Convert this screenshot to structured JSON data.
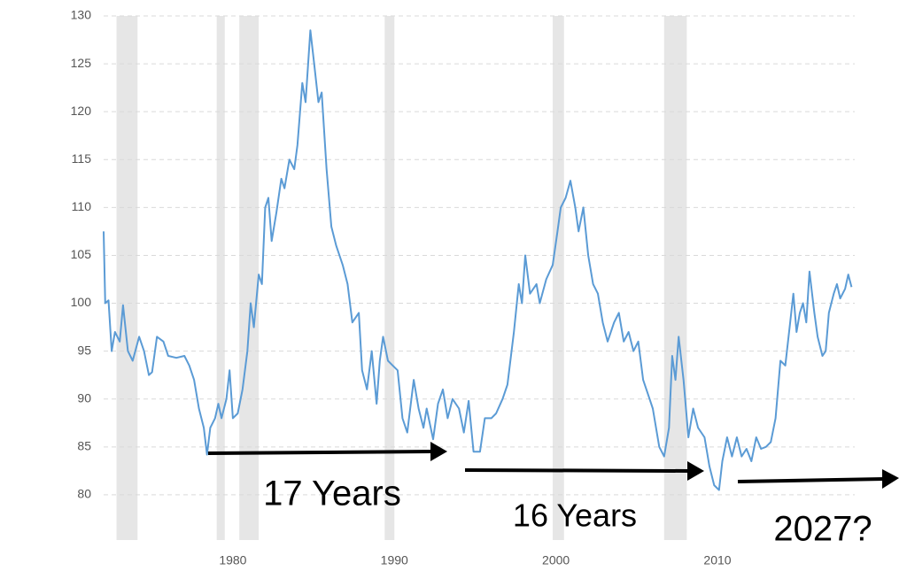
{
  "chart_data": {
    "type": "line",
    "x": [
      1972.0,
      1972.1,
      1972.3,
      1972.5,
      1972.7,
      1973.0,
      1973.2,
      1973.5,
      1973.8,
      1974.2,
      1974.5,
      1974.8,
      1975.0,
      1975.3,
      1975.7,
      1976.0,
      1976.5,
      1977.0,
      1977.3,
      1977.6,
      1977.9,
      1978.2,
      1978.4,
      1978.6,
      1978.9,
      1979.1,
      1979.3,
      1979.6,
      1979.8,
      1980.0,
      1980.3,
      1980.6,
      1980.9,
      1981.1,
      1981.3,
      1981.6,
      1981.8,
      1982.0,
      1982.2,
      1982.4,
      1982.7,
      1983.0,
      1983.2,
      1983.5,
      1983.8,
      1984.0,
      1984.3,
      1984.5,
      1984.8,
      1985.0,
      1985.3,
      1985.5,
      1985.8,
      1986.1,
      1986.4,
      1986.8,
      1987.1,
      1987.4,
      1987.8,
      1988.0,
      1988.3,
      1988.6,
      1988.9,
      1989.1,
      1989.3,
      1989.6,
      1989.9,
      1990.2,
      1990.5,
      1990.8,
      1991.2,
      1991.5,
      1991.8,
      1992.0,
      1992.4,
      1992.7,
      1993.0,
      1993.3,
      1993.6,
      1994.0,
      1994.3,
      1994.6,
      1994.9,
      1995.3,
      1995.6,
      1996.0,
      1996.3,
      1996.7,
      1997.0,
      1997.4,
      1997.7,
      1997.9,
      1998.1,
      1998.4,
      1998.8,
      1999.0,
      1999.4,
      1999.8,
      2000.1,
      2000.3,
      2000.6,
      2000.9,
      2001.2,
      2001.4,
      2001.7,
      2002.0,
      2002.3,
      2002.6,
      2002.9,
      2003.2,
      2003.6,
      2003.9,
      2004.2,
      2004.5,
      2004.8,
      2005.1,
      2005.4,
      2005.8,
      2006.0,
      2006.4,
      2006.7,
      2007.0,
      2007.2,
      2007.4,
      2007.6,
      2007.9,
      2008.2,
      2008.5,
      2008.8,
      2009.2,
      2009.5,
      2009.8,
      2010.1,
      2010.3,
      2010.6,
      2010.9,
      2011.2,
      2011.5,
      2011.8,
      2012.1,
      2012.4,
      2012.7,
      2013.0,
      2013.3,
      2013.6,
      2013.9,
      2014.2,
      2014.5,
      2014.7,
      2014.9,
      2015.1,
      2015.3,
      2015.5,
      2015.7,
      2016.0,
      2016.2,
      2016.5,
      2016.7,
      2016.9,
      2017.2,
      2017.4,
      2017.6,
      2017.9,
      2018.1,
      2018.3
    ],
    "values": [
      107.5,
      100,
      100.3,
      95,
      97,
      96,
      99.8,
      95,
      94,
      96.5,
      95,
      92.5,
      92.8,
      96.5,
      96,
      94.5,
      94.3,
      94.5,
      93.5,
      92,
      89,
      87,
      84.2,
      87,
      88,
      89.5,
      88,
      90,
      93,
      88,
      88.5,
      91,
      95,
      100,
      97.5,
      103,
      102,
      110,
      111,
      106.5,
      109.5,
      113,
      112,
      115,
      114,
      116.5,
      123,
      121,
      128.5,
      125.5,
      121,
      122,
      114,
      108,
      106,
      104,
      102,
      98,
      99,
      93,
      91,
      95,
      89.5,
      94,
      96.5,
      94,
      93.5,
      93,
      88,
      86.5,
      92,
      89,
      87,
      89,
      85.8,
      89.5,
      91,
      88,
      90,
      89,
      86.5,
      89.8,
      84.5,
      84.5,
      88,
      88,
      88.5,
      90,
      91.5,
      97,
      102,
      100,
      105,
      101,
      102,
      100,
      102.5,
      104,
      107.5,
      110,
      111,
      112.8,
      110,
      107.5,
      110,
      105,
      102,
      101,
      98,
      96,
      98,
      99,
      96,
      97,
      95,
      96,
      92,
      90,
      89,
      85,
      84,
      87,
      94.5,
      92,
      96.5,
      92,
      86,
      89,
      87,
      86,
      83,
      81,
      80.5,
      83.5,
      86,
      84,
      86,
      84,
      84.8,
      83.5,
      86,
      84.8,
      85,
      85.5,
      88,
      94,
      93.5,
      98,
      101,
      97,
      99,
      100,
      98,
      103.3,
      99,
      96.5,
      94.5,
      95,
      99,
      101,
      102,
      100.5,
      101.5,
      103,
      101.7
    ],
    "color": "#5b9bd5",
    "xlim": [
      1972,
      2018.5
    ],
    "xticks": [
      1980,
      1990,
      2000,
      2010
    ],
    "ylim": [
      75,
      130
    ],
    "yticks": [
      80,
      85,
      90,
      95,
      100,
      105,
      110,
      115,
      120,
      125,
      130
    ],
    "grid": true,
    "shaded_periods": [
      [
        1972.8,
        1974.1
      ],
      [
        1979.0,
        1979.5
      ],
      [
        1980.4,
        1981.6
      ],
      [
        1989.4,
        1990.0
      ],
      [
        1999.8,
        2000.5
      ],
      [
        2006.7,
        2008.1
      ]
    ],
    "shade_color": "#e6e6e6",
    "annotations": [
      "17 Years",
      "16 Years",
      "2027?"
    ]
  }
}
